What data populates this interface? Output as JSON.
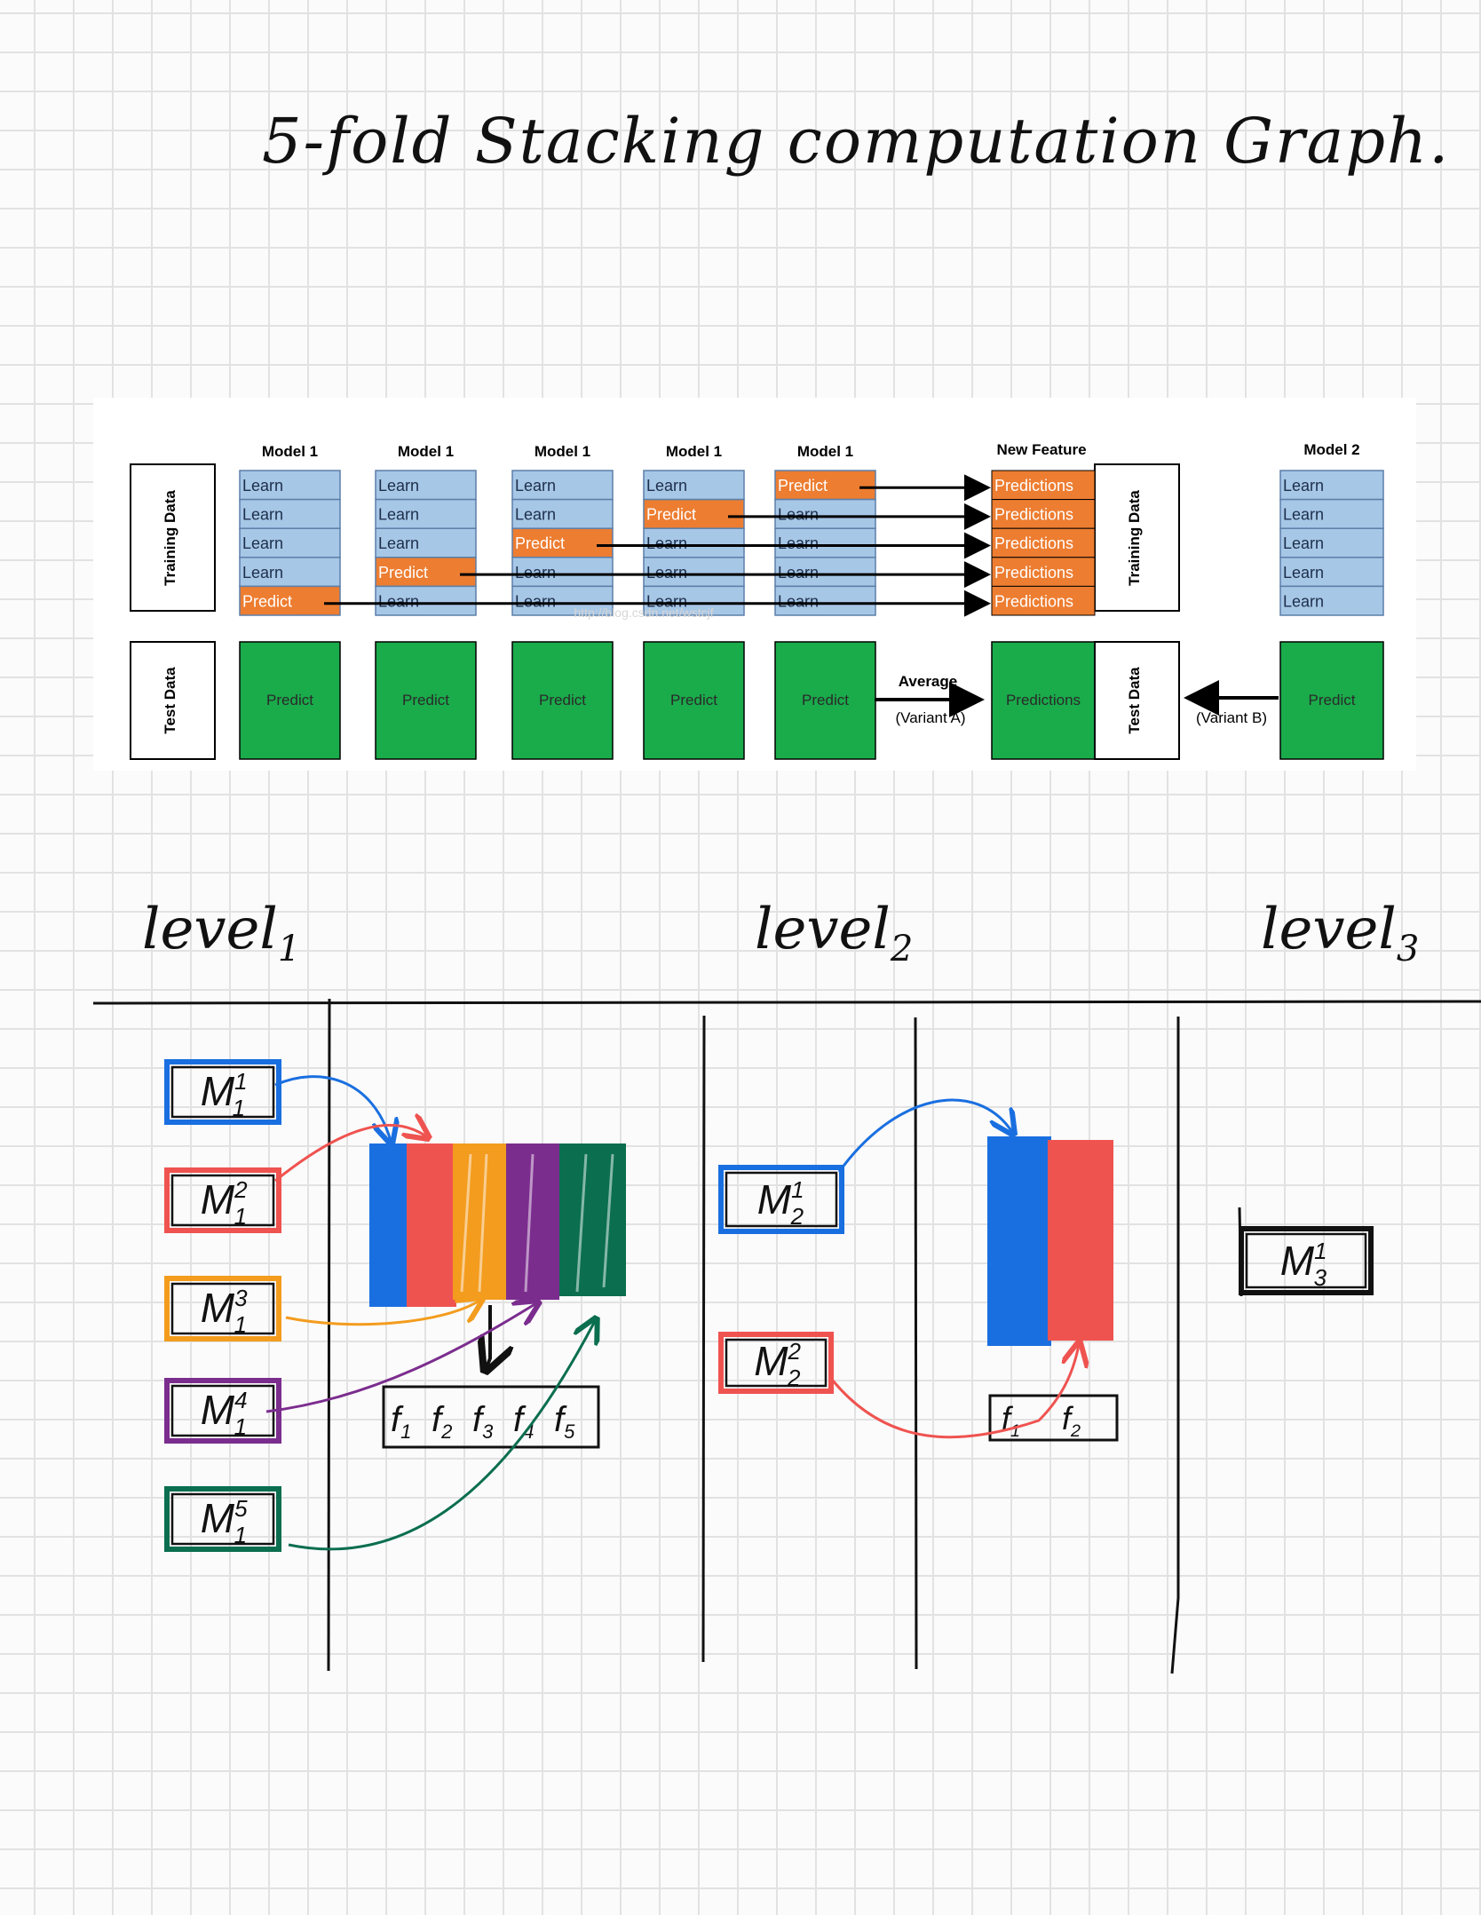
{
  "title": "5-fold Stacking computation Graph.",
  "figure": {
    "model_headers": [
      "Model 1",
      "Model 1",
      "Model 1",
      "Model 1",
      "Model 1"
    ],
    "new_feature_header": "New Feature",
    "model2_header": "Model 2",
    "training_label": "Training Data",
    "test_label": "Test Data",
    "folds": [
      [
        "Learn",
        "Learn",
        "Learn",
        "Learn",
        "Predict"
      ],
      [
        "Learn",
        "Learn",
        "Learn",
        "Predict",
        "Learn"
      ],
      [
        "Learn",
        "Learn",
        "Predict",
        "Learn",
        "Learn"
      ],
      [
        "Learn",
        "Predict",
        "Learn",
        "Learn",
        "Learn"
      ],
      [
        "Predict",
        "Learn",
        "Learn",
        "Learn",
        "Learn"
      ]
    ],
    "predictions_cell": "Predictions",
    "test_predict": "Predict",
    "average_label": "Average",
    "variant_a": "(Variant A)",
    "variant_b": "(Variant B)",
    "new_feature_test": "Predictions",
    "model2_train": [
      "Learn",
      "Learn",
      "Learn",
      "Learn",
      "Learn"
    ],
    "model2_test": "Predict",
    "watermark": "http://blog.csdn.net/wstcjf",
    "colors": {
      "learn": "#a7c7e7",
      "predict": "#ed7d31",
      "test": "#1aab4b"
    }
  },
  "levels": [
    "level",
    "level",
    "level"
  ],
  "level_subs": [
    "1",
    "2",
    "3"
  ],
  "level1_models": [
    {
      "base": "M",
      "sup": "1",
      "sub": "1",
      "color": "#1a6fe0"
    },
    {
      "base": "M",
      "sup": "2",
      "sub": "1",
      "color": "#ef5350"
    },
    {
      "base": "M",
      "sup": "3",
      "sub": "1",
      "color": "#f39c1e"
    },
    {
      "base": "M",
      "sup": "4",
      "sub": "1",
      "color": "#7b2d8e"
    },
    {
      "base": "M",
      "sup": "5",
      "sub": "1",
      "color": "#0b6e4f"
    }
  ],
  "level1_features": [
    "f",
    "f",
    "f",
    "f",
    "f"
  ],
  "level1_feature_subs": [
    "1",
    "2",
    "3",
    "4",
    "5"
  ],
  "level2_models": [
    {
      "base": "M",
      "sup": "1",
      "sub": "2",
      "color": "#1a6fe0"
    },
    {
      "base": "M",
      "sup": "2",
      "sub": "2",
      "color": "#ef5350"
    }
  ],
  "level2_features": [
    "f",
    "f"
  ],
  "level2_feature_subs": [
    "1",
    "2"
  ],
  "level3_model": {
    "base": "M",
    "sup": "1",
    "sub": "3",
    "color": "#111111"
  }
}
